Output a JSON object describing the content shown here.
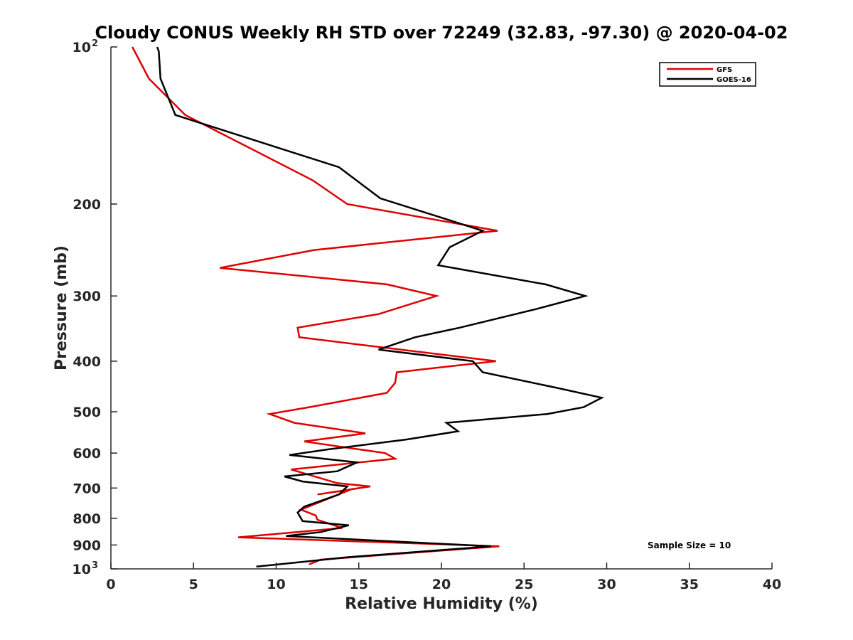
{
  "chart_data": {
    "type": "line",
    "title": "Cloudy CONUS Weekly RH STD over 72249 (32.83, -97.30) @ 2020-04-02",
    "xlabel": "Relative Humidity (%)",
    "ylabel": "Pressure (mb)",
    "xlim": [
      0,
      40
    ],
    "ylim": [
      100,
      1000
    ],
    "y_scale": "log",
    "y_reversed": true,
    "grid": false,
    "legend_position": "top-right",
    "xticks": [
      0,
      5,
      10,
      15,
      20,
      25,
      30,
      35,
      40
    ],
    "xtick_labels": [
      "0",
      "5",
      "10",
      "15",
      "20",
      "25",
      "30",
      "35",
      "40"
    ],
    "yticks": [
      {
        "value": 100,
        "base": "10",
        "exp": "2"
      },
      {
        "value": 200,
        "base": "200",
        "exp": ""
      },
      {
        "value": 300,
        "base": "300",
        "exp": ""
      },
      {
        "value": 400,
        "base": "400",
        "exp": ""
      },
      {
        "value": 500,
        "base": "500",
        "exp": ""
      },
      {
        "value": 600,
        "base": "600",
        "exp": ""
      },
      {
        "value": 700,
        "base": "700",
        "exp": ""
      },
      {
        "value": 800,
        "base": "800",
        "exp": ""
      },
      {
        "value": 900,
        "base": "900",
        "exp": ""
      },
      {
        "value": 1000,
        "base": "10",
        "exp": "3"
      }
    ],
    "annotation": "Sample Size = 10",
    "series": [
      {
        "name": "GFS",
        "color": "#e00000",
        "x": [
          1.3,
          2.3,
          4.5,
          12.2,
          14.3,
          23.4,
          12.3,
          6.6,
          16.7,
          19.7,
          16.2,
          11.3,
          11.4,
          23.3,
          17.3,
          17.2,
          16.7,
          12.0,
          9.6,
          11.1,
          15.4,
          11.7,
          16.6,
          17.2,
          10.9,
          13.7,
          15.7,
          12.5,
          14.5,
          11.5,
          12.4,
          12.5,
          14.0,
          7.7,
          23.5,
          12.7,
          12.0
        ],
        "y": [
          100,
          115,
          135,
          180,
          200,
          225,
          245,
          265,
          285,
          300,
          325,
          345,
          360,
          400,
          420,
          440,
          460,
          490,
          505,
          525,
          550,
          570,
          600,
          615,
          645,
          685,
          695,
          720,
          705,
          770,
          790,
          805,
          835,
          870,
          905,
          960,
          980
        ]
      },
      {
        "name": "GOES-16",
        "color": "#000000",
        "x": [
          2.8,
          2.9,
          3.0,
          3.9,
          13.8,
          16.3,
          22.5,
          20.5,
          19.8,
          26.3,
          28.7,
          25.7,
          21.1,
          18.4,
          16.2,
          21.9,
          22.5,
          27.0,
          29.7,
          28.6,
          26.4,
          20.3,
          21.0,
          17.9,
          13.2,
          10.8,
          14.9,
          13.7,
          10.5,
          11.6,
          14.3,
          13.8,
          11.7,
          11.3,
          11.6,
          14.4,
          12.7,
          10.6,
          23.0,
          14.3,
          8.8
        ],
        "y": [
          100,
          102,
          115,
          135,
          170,
          195,
          225,
          242,
          262,
          285,
          300,
          318,
          345,
          360,
          380,
          400,
          420,
          450,
          470,
          490,
          505,
          525,
          545,
          565,
          590,
          605,
          625,
          650,
          665,
          680,
          695,
          720,
          760,
          780,
          810,
          825,
          850,
          865,
          905,
          950,
          990
        ]
      }
    ]
  }
}
